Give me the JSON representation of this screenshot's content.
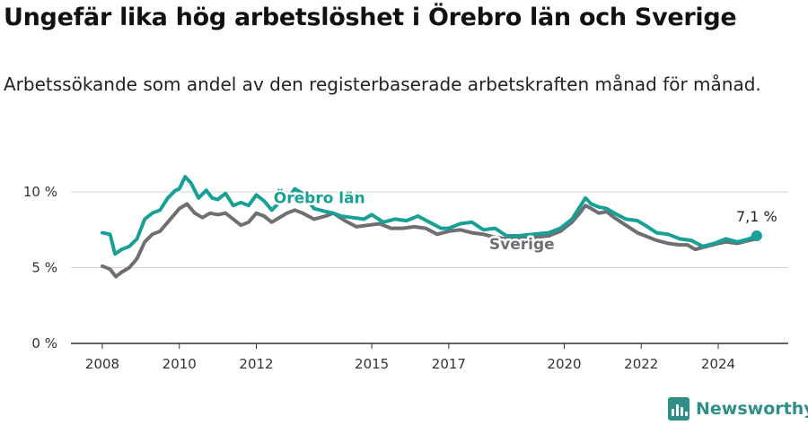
{
  "title": "Ungefär lika hög arbetslöshet i Örebro län och Sverige",
  "subtitle": "Arbetssökande som andel av den registerbaserade arbetskraften månad för månad.",
  "brand": {
    "name": "Newsworthy"
  },
  "colors": {
    "orebro": "#17a196",
    "sverige": "#6e6e73",
    "grid": "#d4d4d4",
    "axis": "#333333"
  },
  "chart_data": {
    "type": "line",
    "x_unit": "year",
    "xlim": [
      2006.7,
      2026.3
    ],
    "ylim": [
      0,
      11
    ],
    "yticks": [
      {
        "value": 0,
        "label": "0 %"
      },
      {
        "value": 5,
        "label": "5 %"
      },
      {
        "value": 10,
        "label": "10 %"
      }
    ],
    "xticks": [
      {
        "value": 2008,
        "label": "2008"
      },
      {
        "value": 2010,
        "label": "2010"
      },
      {
        "value": 2012,
        "label": "2012"
      },
      {
        "value": 2015,
        "label": "2015"
      },
      {
        "value": 2017,
        "label": "2017"
      },
      {
        "value": 2020,
        "label": "2020"
      },
      {
        "value": 2022,
        "label": "2022"
      },
      {
        "value": 2024,
        "label": "2024"
      }
    ],
    "grid": true,
    "last_value_label": "7,1 %",
    "series": [
      {
        "name": "Örebro län",
        "color": "#17a196",
        "x": [
          2008.0,
          2008.2,
          2008.33,
          2008.5,
          2008.7,
          2008.9,
          2009.1,
          2009.3,
          2009.5,
          2009.7,
          2009.9,
          2010.0,
          2010.15,
          2010.3,
          2010.5,
          2010.7,
          2010.85,
          2011.0,
          2011.2,
          2011.4,
          2011.6,
          2011.8,
          2012.0,
          2012.2,
          2012.4,
          2012.6,
          2012.8,
          2013.0,
          2013.2,
          2013.5,
          2013.8,
          2014.0,
          2014.2,
          2014.5,
          2014.8,
          2015.0,
          2015.3,
          2015.6,
          2015.9,
          2016.2,
          2016.5,
          2016.8,
          2017.0,
          2017.3,
          2017.6,
          2017.9,
          2018.2,
          2018.5,
          2018.8,
          2019.2,
          2019.6,
          2019.9,
          2020.2,
          2020.4,
          2020.55,
          2020.7,
          2020.9,
          2021.1,
          2021.3,
          2021.6,
          2021.9,
          2022.1,
          2022.4,
          2022.7,
          2023.0,
          2023.3,
          2023.6,
          2023.9,
          2024.2,
          2024.5,
          2024.8,
          2025.0
        ],
        "values": [
          7.3,
          7.2,
          5.9,
          6.2,
          6.4,
          6.9,
          8.2,
          8.6,
          8.8,
          9.6,
          10.1,
          10.2,
          11.0,
          10.6,
          9.6,
          10.1,
          9.6,
          9.5,
          9.9,
          9.1,
          9.3,
          9.1,
          9.8,
          9.4,
          8.8,
          9.3,
          9.5,
          10.2,
          9.9,
          8.9,
          8.7,
          8.6,
          8.4,
          8.3,
          8.2,
          8.5,
          8.0,
          8.2,
          8.1,
          8.4,
          8.0,
          7.6,
          7.6,
          7.9,
          8.0,
          7.5,
          7.6,
          7.1,
          7.1,
          7.2,
          7.3,
          7.6,
          8.2,
          9.0,
          9.6,
          9.2,
          9.0,
          8.9,
          8.6,
          8.2,
          8.1,
          7.8,
          7.3,
          7.2,
          6.9,
          6.8,
          6.4,
          6.6,
          6.9,
          6.7,
          6.9,
          7.1
        ]
      },
      {
        "name": "Sverige",
        "color": "#6e6e73",
        "x": [
          2008.0,
          2008.2,
          2008.35,
          2008.5,
          2008.7,
          2008.9,
          2009.1,
          2009.3,
          2009.5,
          2009.7,
          2009.9,
          2010.0,
          2010.2,
          2010.4,
          2010.6,
          2010.8,
          2011.0,
          2011.2,
          2011.4,
          2011.6,
          2011.8,
          2012.0,
          2012.2,
          2012.4,
          2012.6,
          2012.8,
          2013.0,
          2013.2,
          2013.5,
          2013.8,
          2014.0,
          2014.3,
          2014.6,
          2014.9,
          2015.2,
          2015.5,
          2015.8,
          2016.1,
          2016.4,
          2016.7,
          2017.0,
          2017.3,
          2017.6,
          2017.9,
          2018.2,
          2018.5,
          2018.8,
          2019.2,
          2019.6,
          2019.9,
          2020.2,
          2020.4,
          2020.55,
          2020.7,
          2020.9,
          2021.1,
          2021.3,
          2021.6,
          2021.9,
          2022.1,
          2022.4,
          2022.7,
          2023.0,
          2023.2,
          2023.4,
          2023.7,
          2024.0,
          2024.2,
          2024.5,
          2024.8,
          2025.0
        ],
        "values": [
          5.1,
          4.9,
          4.4,
          4.7,
          5.0,
          5.6,
          6.7,
          7.2,
          7.4,
          8.0,
          8.6,
          8.9,
          9.2,
          8.6,
          8.3,
          8.6,
          8.5,
          8.6,
          8.2,
          7.8,
          8.0,
          8.6,
          8.4,
          8.0,
          8.3,
          8.6,
          8.8,
          8.6,
          8.2,
          8.4,
          8.6,
          8.1,
          7.7,
          7.8,
          7.9,
          7.6,
          7.6,
          7.7,
          7.6,
          7.2,
          7.4,
          7.5,
          7.3,
          7.2,
          7.0,
          6.9,
          6.9,
          7.0,
          7.1,
          7.4,
          8.0,
          8.6,
          9.1,
          8.9,
          8.6,
          8.7,
          8.3,
          7.8,
          7.3,
          7.1,
          6.8,
          6.6,
          6.5,
          6.5,
          6.2,
          6.4,
          6.6,
          6.7,
          6.6,
          6.8,
          6.9
        ]
      }
    ]
  }
}
